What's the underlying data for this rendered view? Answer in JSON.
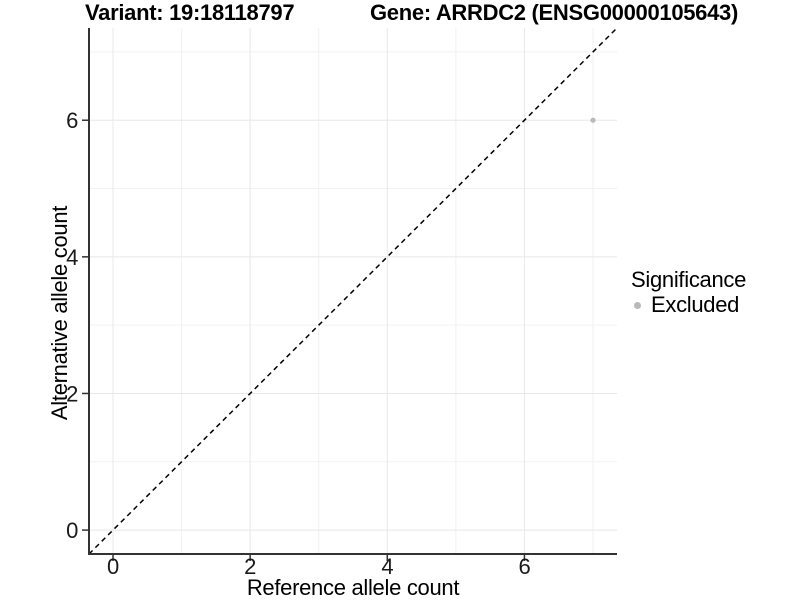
{
  "chart_data": {
    "type": "scatter",
    "title_left": "Variant: 19:18118797",
    "title_right": "Gene: ARRDC2 (ENSG00000105643)",
    "xlabel": "Reference allele count",
    "ylabel": "Alternative allele count",
    "xlim": [
      -0.35,
      7.35
    ],
    "ylim": [
      -0.35,
      7.35
    ],
    "x_major_ticks": [
      0,
      2,
      4,
      6
    ],
    "y_major_ticks": [
      0,
      2,
      4,
      6
    ],
    "x_minor_gridlines": [
      1,
      3,
      5,
      7
    ],
    "y_minor_gridlines": [
      1,
      3,
      5,
      7
    ],
    "grid": "major+minor",
    "points": [
      {
        "x": 7,
        "y": 6,
        "series": "Excluded"
      }
    ],
    "reference_line": {
      "type": "identity",
      "slope": 1,
      "intercept": 0,
      "style": "dashed"
    },
    "legend": {
      "title": "Significance",
      "position": "right",
      "items": [
        {
          "label": "Excluded",
          "color": "#b9b9b9",
          "marker": "circle"
        }
      ]
    },
    "colors": {
      "point": "#b9b9b9",
      "axis_line": "#333333",
      "tick_label": "#1a1a1a",
      "grid_major": "#e8e8e8",
      "grid_minor": "#f2f2f2",
      "reference_line": "#000000",
      "background": "#ffffff"
    }
  }
}
